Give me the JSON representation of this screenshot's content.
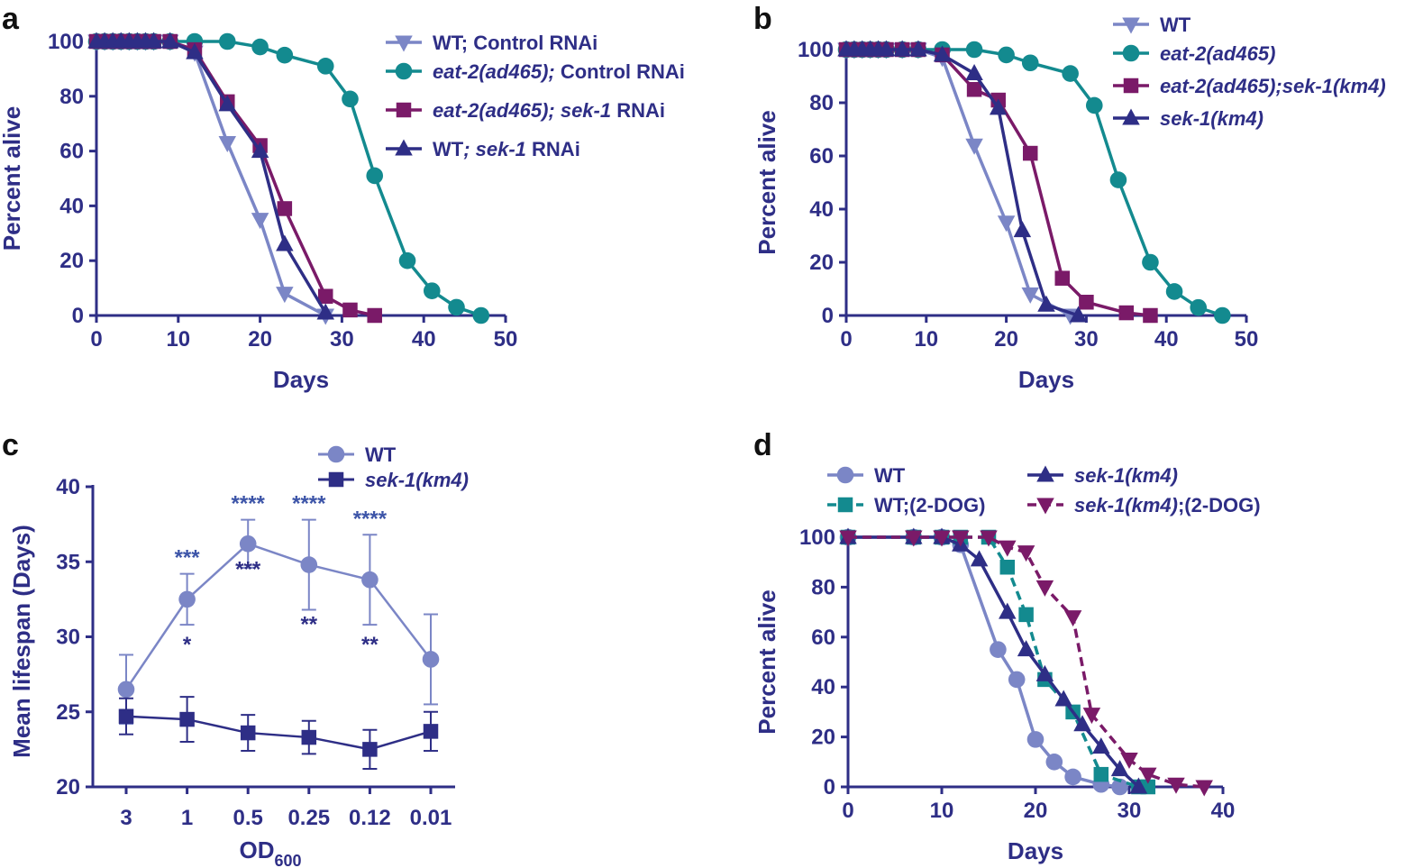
{
  "colors": {
    "wt": "#7b86c6",
    "eat2": "#138a8f",
    "eat2sek": "#7a1a68",
    "sek": "#2e2e86",
    "axis": "#2e2e86"
  },
  "chart_data": [
    {
      "panel": "a",
      "type": "line",
      "xlabel": "Days",
      "ylabel": "Percent alive",
      "xlim": [
        0,
        50
      ],
      "ylim": [
        0,
        100
      ],
      "xticks": [
        "0",
        "10",
        "20",
        "30",
        "40",
        "50"
      ],
      "yticks": [
        "0",
        "20",
        "40",
        "60",
        "80",
        "100"
      ],
      "legend_position": "top-right",
      "series": [
        {
          "legend": [
            "WT; Control RNAi"
          ],
          "name": "WT; Control RNAi",
          "color_key": "wt",
          "marker": "triangle-down",
          "dashed": false,
          "x": [
            0,
            1,
            2,
            3,
            4,
            5,
            6,
            7,
            9,
            12,
            16,
            20,
            23,
            28
          ],
          "y": [
            100,
            100,
            100,
            100,
            100,
            100,
            100,
            100,
            100,
            96,
            63,
            35,
            8,
            0
          ]
        },
        {
          "legend": [
            "eat-2(ad465);",
            " Control RNAi"
          ],
          "name": "eat-2(ad465); Control RNAi",
          "color_key": "eat2",
          "marker": "circle",
          "dashed": false,
          "x": [
            0,
            1,
            2,
            3,
            4,
            5,
            6,
            7,
            9,
            12,
            16,
            20,
            23,
            28,
            31,
            34,
            38,
            41,
            44,
            47
          ],
          "y": [
            100,
            100,
            100,
            100,
            100,
            100,
            100,
            100,
            100,
            100,
            100,
            98,
            95,
            91,
            79,
            51,
            20,
            9,
            3,
            0
          ]
        },
        {
          "legend": [
            "eat-2(ad465); sek-1",
            " RNAi"
          ],
          "name": "eat-2(ad465); sek-1 RNAi",
          "color_key": "eat2sek",
          "marker": "square",
          "dashed": false,
          "x": [
            0,
            1,
            2,
            3,
            4,
            5,
            6,
            7,
            9,
            12,
            16,
            20,
            23,
            28,
            31,
            34
          ],
          "y": [
            100,
            100,
            100,
            100,
            100,
            100,
            100,
            100,
            100,
            97,
            78,
            62,
            39,
            7,
            2,
            0
          ]
        },
        {
          "legend": [
            "WT",
            "; sek-1",
            " RNAi"
          ],
          "name": "WT; sek-1 RNAi",
          "color_key": "sek",
          "marker": "triangle-up",
          "dashed": false,
          "x": [
            0,
            1,
            2,
            3,
            4,
            5,
            6,
            7,
            9,
            12,
            16,
            20,
            23,
            28
          ],
          "y": [
            100,
            100,
            100,
            100,
            100,
            100,
            100,
            100,
            100,
            96,
            77,
            60,
            26,
            1
          ]
        }
      ]
    },
    {
      "panel": "b",
      "type": "line",
      "xlabel": "Days",
      "ylabel": "Percent alive",
      "xlim": [
        0,
        50
      ],
      "ylim": [
        0,
        100
      ],
      "xticks": [
        "0",
        "10",
        "20",
        "30",
        "40",
        "50"
      ],
      "yticks": [
        "0",
        "20",
        "40",
        "60",
        "80",
        "100"
      ],
      "legend_position": "top-right",
      "series": [
        {
          "legend": [
            "WT"
          ],
          "name": "WT",
          "color_key": "wt",
          "marker": "triangle-down",
          "dashed": false,
          "x": [
            0,
            1,
            2,
            3,
            4,
            5,
            7,
            9,
            12,
            16,
            20,
            23,
            28
          ],
          "y": [
            100,
            100,
            100,
            100,
            100,
            100,
            100,
            100,
            97,
            64,
            35,
            8,
            0
          ]
        },
        {
          "legend": [
            "eat-2(ad465)"
          ],
          "name": "eat-2(ad465)",
          "color_key": "eat2",
          "marker": "circle",
          "dashed": false,
          "x": [
            0,
            1,
            2,
            3,
            4,
            5,
            7,
            9,
            12,
            16,
            20,
            23,
            28,
            31,
            34,
            38,
            41,
            44,
            47
          ],
          "y": [
            100,
            100,
            100,
            100,
            100,
            100,
            100,
            100,
            100,
            100,
            98,
            95,
            91,
            79,
            51,
            20,
            9,
            3,
            0
          ]
        },
        {
          "legend": [
            "eat-2(ad465);sek-1(km4)"
          ],
          "name": "eat-2(ad465);sek-1(km4)",
          "color_key": "eat2sek",
          "marker": "square",
          "dashed": false,
          "x": [
            0,
            1,
            2,
            3,
            4,
            5,
            7,
            9,
            12,
            16,
            19,
            23,
            27,
            30,
            35,
            38
          ],
          "y": [
            100,
            100,
            100,
            100,
            100,
            100,
            100,
            100,
            98,
            85,
            81,
            61,
            14,
            5,
            1,
            0
          ]
        },
        {
          "legend": [
            "sek-1(km4)"
          ],
          "name": "sek-1(km4)",
          "color_key": "sek",
          "marker": "triangle-up",
          "dashed": false,
          "x": [
            0,
            1,
            2,
            3,
            4,
            5,
            7,
            9,
            12,
            16,
            19,
            22,
            25,
            29
          ],
          "y": [
            100,
            100,
            100,
            100,
            100,
            100,
            100,
            100,
            98,
            91,
            78,
            32,
            4,
            0
          ]
        }
      ]
    },
    {
      "panel": "c",
      "type": "line",
      "xlabel": "OD",
      "xlabel_sub": "600",
      "ylabel": "Mean lifespan (Days)",
      "categories": [
        "3",
        "1",
        "0.5",
        "0.25",
        "0.12",
        "0.01"
      ],
      "ylim": [
        20,
        40
      ],
      "yticks": [
        "20",
        "25",
        "30",
        "35",
        "40"
      ],
      "legend_position": "top-right",
      "series": [
        {
          "legend": [
            "WT"
          ],
          "name": "WT",
          "color_key": "wt",
          "marker": "circle",
          "values": [
            26.5,
            32.5,
            36.2,
            34.8,
            33.8,
            28.5
          ],
          "err": [
            2.3,
            1.7,
            1.6,
            3.0,
            3.0,
            3.0
          ],
          "sig": [
            "",
            "***",
            "****",
            "****",
            "****",
            ""
          ]
        },
        {
          "legend": [
            "sek-1(km4)"
          ],
          "name": "sek-1(km4)",
          "color_key": "sek",
          "marker": "square",
          "values": [
            24.7,
            24.5,
            23.6,
            23.3,
            22.5,
            23.7
          ],
          "err": [
            1.2,
            1.5,
            1.2,
            1.1,
            1.3,
            1.3
          ],
          "sig": [
            "",
            "*",
            "***",
            "**",
            "**",
            ""
          ]
        }
      ]
    },
    {
      "panel": "d",
      "type": "line",
      "xlabel": "Days",
      "ylabel": "Percent alive",
      "xlim": [
        0,
        40
      ],
      "ylim": [
        0,
        100
      ],
      "xticks": [
        "0",
        "10",
        "20",
        "30",
        "40"
      ],
      "yticks": [
        "0",
        "20",
        "40",
        "60",
        "80",
        "100"
      ],
      "legend_position": "top",
      "series": [
        {
          "legend": [
            "WT"
          ],
          "name": "WT",
          "color_key": "wt",
          "marker": "circle",
          "dashed": false,
          "x": [
            0,
            7,
            10,
            12,
            16,
            18,
            20,
            22,
            24,
            27,
            29
          ],
          "y": [
            100,
            100,
            100,
            97,
            55,
            43,
            19,
            10,
            4,
            1,
            0
          ]
        },
        {
          "legend": [
            "WT;(2-DOG)"
          ],
          "name": "WT;(2-DOG)",
          "color_key": "eat2",
          "marker": "square",
          "dashed": true,
          "x": [
            0,
            7,
            10,
            12,
            15,
            17,
            19,
            21,
            24,
            27,
            31,
            32
          ],
          "y": [
            100,
            100,
            100,
            100,
            100,
            88,
            69,
            43,
            30,
            5,
            0,
            0
          ]
        },
        {
          "legend": [
            "sek-1(km4)"
          ],
          "name": "sek-1(km4)",
          "color_key": "sek",
          "marker": "triangle-up",
          "dashed": false,
          "x": [
            0,
            7,
            10,
            12,
            14,
            17,
            19,
            21,
            23,
            25,
            27,
            29,
            31
          ],
          "y": [
            100,
            100,
            100,
            97,
            91,
            70,
            55,
            45,
            35,
            25,
            16,
            7,
            0
          ]
        },
        {
          "legend": [
            "sek-1(km4)",
            ";(2-DOG)"
          ],
          "name": "sek-1(km4);(2-DOG)",
          "color_key": "eat2sek",
          "marker": "triangle-down",
          "dashed": true,
          "x": [
            0,
            7,
            10,
            12,
            15,
            17,
            19,
            21,
            24,
            26,
            30,
            32,
            35,
            38
          ],
          "y": [
            100,
            100,
            100,
            100,
            100,
            96,
            94,
            80,
            68,
            29,
            11,
            5,
            1,
            0
          ]
        }
      ]
    }
  ]
}
